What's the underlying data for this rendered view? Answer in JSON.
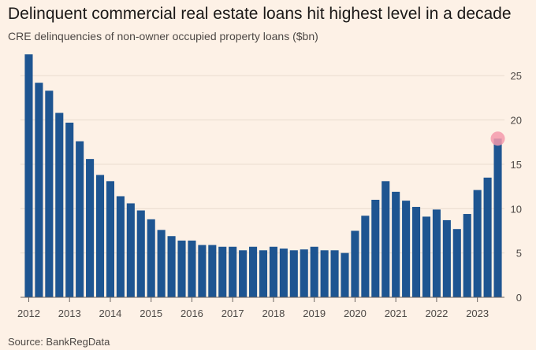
{
  "title": "Delinquent commercial real estate loans hit highest level in a decade",
  "subtitle": "CRE delinquencies of non-owner occupied property loans ($bn)",
  "source": "Source: BankRegData",
  "colors": {
    "background": "#fdf1e6",
    "bar": "#1e5591",
    "highlight": "#f49aac",
    "grid": "#e8dbce",
    "text": "#4d4845"
  },
  "chart_data": {
    "type": "bar",
    "title": "Delinquent commercial real estate loans hit highest level in a decade",
    "subtitle": "CRE delinquencies of non-owner occupied property loans ($bn)",
    "xlabel": "",
    "ylabel": "",
    "ylim": [
      0,
      27.5
    ],
    "y_ticks": [
      0,
      5,
      10,
      15,
      20,
      25
    ],
    "y_axis_side": "right",
    "grid": true,
    "frequency": "quarterly",
    "x_tick_labels": [
      "2012",
      "2013",
      "2014",
      "2015",
      "2016",
      "2017",
      "2018",
      "2019",
      "2020",
      "2021",
      "2022",
      "2023"
    ],
    "categories": [
      "2012 Q1",
      "2012 Q2",
      "2012 Q3",
      "2012 Q4",
      "2013 Q1",
      "2013 Q2",
      "2013 Q3",
      "2013 Q4",
      "2014 Q1",
      "2014 Q2",
      "2014 Q3",
      "2014 Q4",
      "2015 Q1",
      "2015 Q2",
      "2015 Q3",
      "2015 Q4",
      "2016 Q1",
      "2016 Q2",
      "2016 Q3",
      "2016 Q4",
      "2017 Q1",
      "2017 Q2",
      "2017 Q3",
      "2017 Q4",
      "2018 Q1",
      "2018 Q2",
      "2018 Q3",
      "2018 Q4",
      "2019 Q1",
      "2019 Q2",
      "2019 Q3",
      "2019 Q4",
      "2020 Q1",
      "2020 Q2",
      "2020 Q3",
      "2020 Q4",
      "2021 Q1",
      "2021 Q2",
      "2021 Q3",
      "2021 Q4",
      "2022 Q1",
      "2022 Q2",
      "2022 Q3",
      "2022 Q4",
      "2023 Q1",
      "2023 Q2",
      "2023 Q3"
    ],
    "values": [
      27.4,
      24.2,
      23.3,
      20.8,
      19.7,
      17.6,
      15.6,
      13.8,
      13.1,
      11.4,
      10.6,
      9.8,
      8.8,
      7.6,
      6.9,
      6.4,
      6.4,
      5.9,
      5.9,
      5.7,
      5.7,
      5.3,
      5.7,
      5.3,
      5.7,
      5.5,
      5.3,
      5.4,
      5.7,
      5.3,
      5.3,
      5.0,
      7.5,
      9.2,
      11.0,
      13.1,
      11.9,
      10.9,
      10.2,
      9.1,
      9.9,
      8.7,
      7.7,
      9.4,
      12.1,
      13.5,
      17.9
    ],
    "highlight_index": 46
  }
}
